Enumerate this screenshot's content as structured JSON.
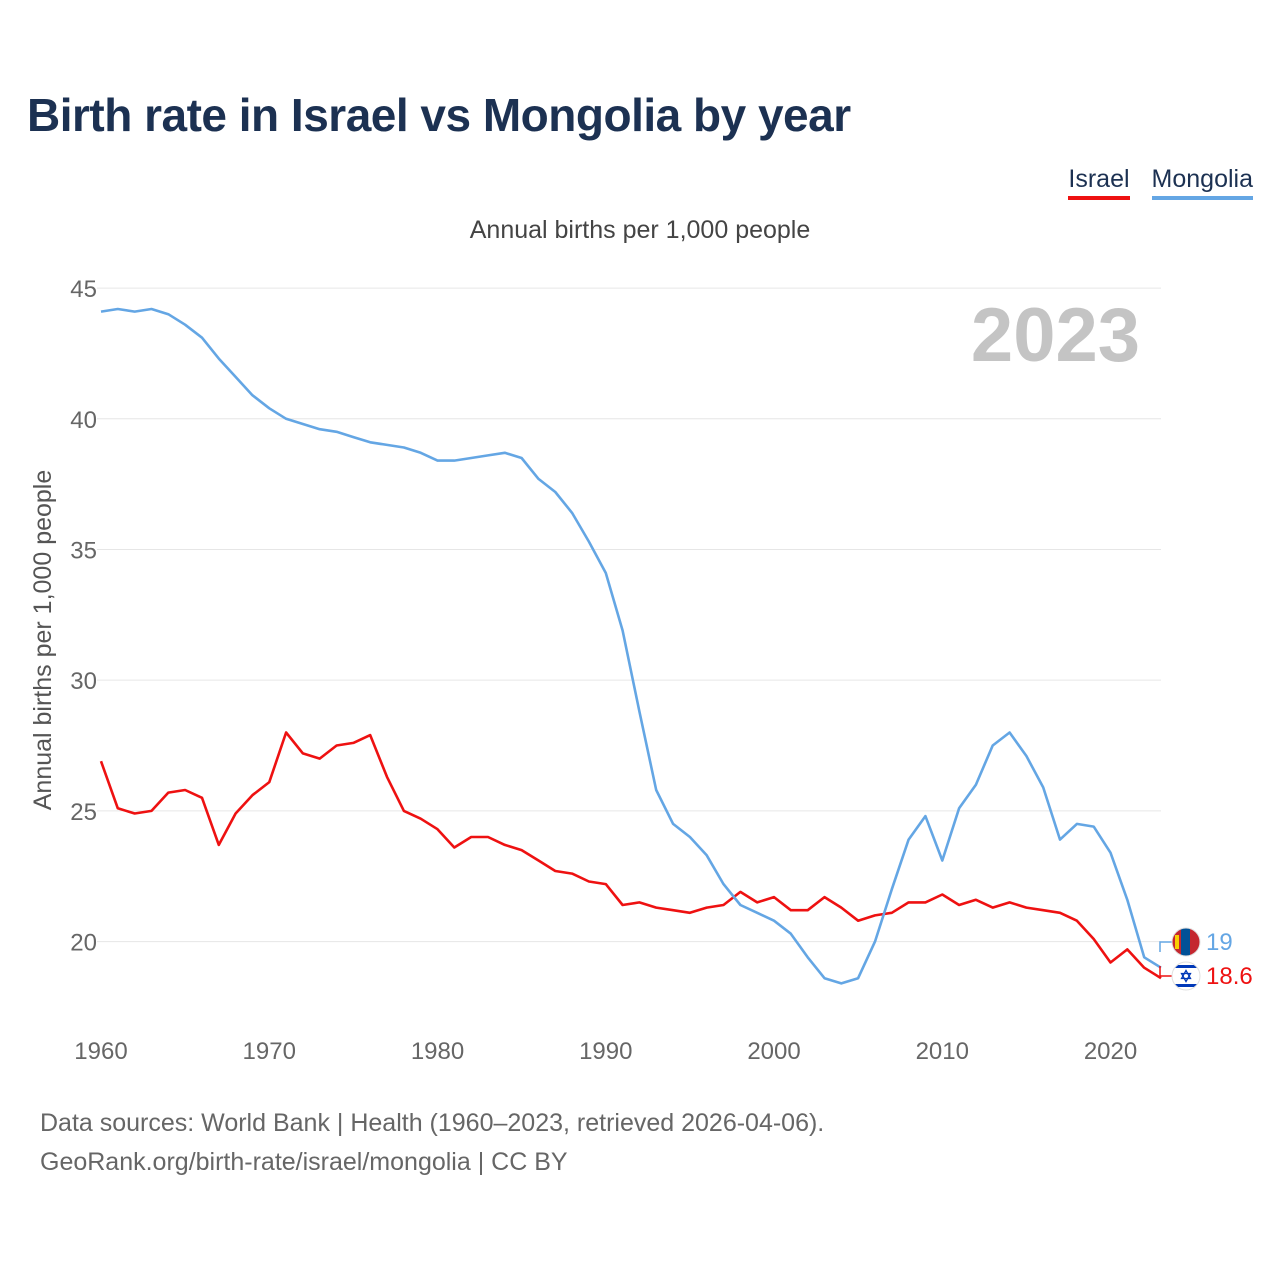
{
  "title": "Birth rate in Israel vs Mongolia by year",
  "subtitle": "Annual births per 1,000 people",
  "source": {
    "line1": "Data sources: World Bank | Health (1960–2023, retrieved 2026-04-06).",
    "line2": "GeoRank.org/birth-rate/israel/mongolia | CC BY"
  },
  "legend": [
    {
      "label": "Israel",
      "color": "#ee1111"
    },
    {
      "label": "Mongolia",
      "color": "#64a6e4"
    }
  ],
  "chart_data": {
    "type": "line",
    "title": "Birth rate in Israel vs Mongolia by year",
    "xlabel": "",
    "ylabel": "Annual births per 1,000 people",
    "year_label": "2023",
    "xlim": [
      1960,
      2023
    ],
    "ylim": [
      17,
      45.5
    ],
    "xticks": [
      "1960",
      "1970",
      "1980",
      "1990",
      "2000",
      "2010",
      "2020"
    ],
    "yticks": [
      "20",
      "25",
      "30",
      "35",
      "40",
      "45"
    ],
    "grid": true,
    "x": [
      1960,
      1961,
      1962,
      1963,
      1964,
      1965,
      1966,
      1967,
      1968,
      1969,
      1970,
      1971,
      1972,
      1973,
      1974,
      1975,
      1976,
      1977,
      1978,
      1979,
      1980,
      1981,
      1982,
      1983,
      1984,
      1985,
      1986,
      1987,
      1988,
      1989,
      1990,
      1991,
      1992,
      1993,
      1994,
      1995,
      1996,
      1997,
      1998,
      1999,
      2000,
      2001,
      2002,
      2003,
      2004,
      2005,
      2006,
      2007,
      2008,
      2009,
      2010,
      2011,
      2012,
      2013,
      2014,
      2015,
      2016,
      2017,
      2018,
      2019,
      2020,
      2021,
      2022,
      2023
    ],
    "series": [
      {
        "name": "Israel",
        "color": "#ee1111",
        "end_label": "18.6",
        "values": [
          26.9,
          25.1,
          24.9,
          25.0,
          25.7,
          25.8,
          25.5,
          23.7,
          24.9,
          25.6,
          26.1,
          28.0,
          27.2,
          27.0,
          27.5,
          27.6,
          27.9,
          26.3,
          25.0,
          24.7,
          24.3,
          23.6,
          24.0,
          24.0,
          23.7,
          23.5,
          23.1,
          22.7,
          22.6,
          22.3,
          22.2,
          21.4,
          21.5,
          21.3,
          21.2,
          21.1,
          21.3,
          21.4,
          21.9,
          21.5,
          21.7,
          21.2,
          21.2,
          21.7,
          21.3,
          20.8,
          21.0,
          21.1,
          21.5,
          21.5,
          21.8,
          21.4,
          21.6,
          21.3,
          21.5,
          21.3,
          21.2,
          21.1,
          20.8,
          20.1,
          19.2,
          19.7,
          19.0,
          18.6
        ]
      },
      {
        "name": "Mongolia",
        "color": "#64a6e4",
        "end_label": "19",
        "values": [
          44.1,
          44.2,
          44.1,
          44.2,
          44.0,
          43.6,
          43.1,
          42.3,
          41.6,
          40.9,
          40.4,
          40.0,
          39.8,
          39.6,
          39.5,
          39.3,
          39.1,
          39.0,
          38.9,
          38.7,
          38.4,
          38.4,
          38.5,
          38.6,
          38.7,
          38.5,
          37.7,
          37.2,
          36.4,
          35.3,
          34.1,
          31.9,
          28.8,
          25.8,
          24.5,
          24.0,
          23.3,
          22.2,
          21.4,
          21.1,
          20.8,
          20.3,
          19.4,
          18.6,
          18.4,
          18.6,
          20.0,
          22.0,
          23.9,
          24.8,
          23.1,
          25.1,
          26.0,
          27.5,
          28.0,
          27.1,
          25.9,
          23.9,
          24.5,
          24.4,
          23.4,
          21.6,
          19.4,
          19.0
        ]
      }
    ]
  }
}
